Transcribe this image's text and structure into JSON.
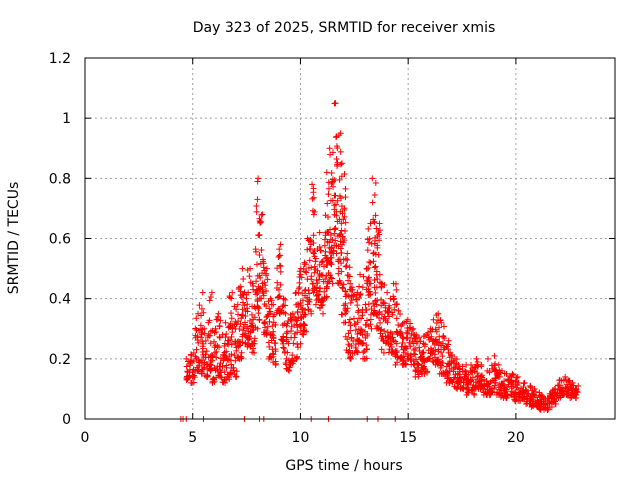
{
  "chart_data": {
    "type": "scatter",
    "title": "Day 323 of 2025, SRMTID for receiver xmis",
    "xlabel": "GPS time / hours",
    "ylabel": "SRMTID / TECUs",
    "xlim": [
      0,
      24.6
    ],
    "ylim": [
      0,
      1.2
    ],
    "xticks": [
      0,
      5,
      10,
      15,
      20
    ],
    "xtick_labels": [
      "0",
      "5",
      "10",
      "15",
      "20"
    ],
    "yticks": [
      0,
      0.2,
      0.4,
      0.6,
      0.8,
      1.0,
      1.2
    ],
    "ytick_labels": [
      "0",
      "0.2",
      "0.4",
      "0.6",
      "0.8",
      "1",
      "1.2"
    ],
    "grid": true,
    "marker": "+",
    "color": "#ff0000",
    "series": [
      {
        "name": "SRMTID",
        "x": [
          4.45,
          4.55,
          4.7,
          5.5,
          7.4,
          8.1,
          8.3,
          10.5,
          11.3,
          13.1,
          13.6,
          14.4
        ],
        "y": [
          0,
          0,
          0,
          0,
          0,
          0,
          0,
          0,
          0,
          0,
          0,
          0
        ],
        "envelope": [
          [
            4.8,
            0.13,
            0.2
          ],
          [
            5.0,
            0.12,
            0.22
          ],
          [
            5.2,
            0.16,
            0.35
          ],
          [
            5.4,
            0.15,
            0.42
          ],
          [
            5.6,
            0.14,
            0.3
          ],
          [
            5.8,
            0.16,
            0.42
          ],
          [
            6.0,
            0.12,
            0.3
          ],
          [
            6.2,
            0.14,
            0.35
          ],
          [
            6.4,
            0.12,
            0.28
          ],
          [
            6.6,
            0.13,
            0.32
          ],
          [
            6.8,
            0.15,
            0.42
          ],
          [
            7.0,
            0.14,
            0.38
          ],
          [
            7.2,
            0.2,
            0.44
          ],
          [
            7.4,
            0.25,
            0.5
          ],
          [
            7.6,
            0.24,
            0.5
          ],
          [
            7.8,
            0.22,
            0.45
          ],
          [
            8.0,
            0.3,
            0.8
          ],
          [
            8.2,
            0.4,
            0.68
          ],
          [
            8.4,
            0.28,
            0.5
          ],
          [
            8.6,
            0.2,
            0.4
          ],
          [
            8.8,
            0.18,
            0.38
          ],
          [
            9.0,
            0.35,
            0.58
          ],
          [
            9.2,
            0.22,
            0.4
          ],
          [
            9.4,
            0.16,
            0.35
          ],
          [
            9.6,
            0.18,
            0.35
          ],
          [
            9.8,
            0.2,
            0.42
          ],
          [
            10.0,
            0.25,
            0.5
          ],
          [
            10.2,
            0.28,
            0.52
          ],
          [
            10.4,
            0.35,
            0.6
          ],
          [
            10.6,
            0.42,
            0.78
          ],
          [
            10.8,
            0.38,
            0.62
          ],
          [
            11.0,
            0.35,
            0.56
          ],
          [
            11.2,
            0.4,
            0.82
          ],
          [
            11.4,
            0.45,
            0.9
          ],
          [
            11.6,
            0.55,
            1.05
          ],
          [
            11.8,
            0.45,
            0.95
          ],
          [
            12.0,
            0.32,
            0.85
          ],
          [
            12.2,
            0.22,
            0.55
          ],
          [
            12.4,
            0.2,
            0.45
          ],
          [
            12.6,
            0.22,
            0.42
          ],
          [
            12.8,
            0.25,
            0.48
          ],
          [
            13.0,
            0.2,
            0.5
          ],
          [
            13.2,
            0.3,
            0.65
          ],
          [
            13.4,
            0.35,
            0.8
          ],
          [
            13.6,
            0.3,
            0.65
          ],
          [
            13.8,
            0.22,
            0.45
          ],
          [
            14.0,
            0.25,
            0.42
          ],
          [
            14.2,
            0.22,
            0.4
          ],
          [
            14.4,
            0.18,
            0.45
          ],
          [
            14.6,
            0.2,
            0.36
          ],
          [
            14.8,
            0.18,
            0.32
          ],
          [
            15.0,
            0.2,
            0.33
          ],
          [
            15.2,
            0.18,
            0.3
          ],
          [
            15.4,
            0.14,
            0.28
          ],
          [
            15.6,
            0.15,
            0.27
          ],
          [
            15.8,
            0.15,
            0.28
          ],
          [
            16.0,
            0.2,
            0.3
          ],
          [
            16.2,
            0.18,
            0.33
          ],
          [
            16.4,
            0.15,
            0.35
          ],
          [
            16.6,
            0.15,
            0.32
          ],
          [
            16.8,
            0.12,
            0.26
          ],
          [
            17.0,
            0.12,
            0.22
          ],
          [
            17.2,
            0.1,
            0.2
          ],
          [
            17.4,
            0.1,
            0.18
          ],
          [
            17.6,
            0.1,
            0.18
          ],
          [
            17.8,
            0.08,
            0.16
          ],
          [
            18.0,
            0.08,
            0.18
          ],
          [
            18.2,
            0.1,
            0.2
          ],
          [
            18.4,
            0.1,
            0.18
          ],
          [
            18.6,
            0.08,
            0.16
          ],
          [
            18.8,
            0.08,
            0.2
          ],
          [
            19.0,
            0.1,
            0.21
          ],
          [
            19.2,
            0.08,
            0.18
          ],
          [
            19.4,
            0.07,
            0.16
          ],
          [
            19.6,
            0.07,
            0.15
          ],
          [
            19.8,
            0.08,
            0.15
          ],
          [
            20.0,
            0.06,
            0.14
          ],
          [
            20.2,
            0.06,
            0.12
          ],
          [
            20.4,
            0.05,
            0.12
          ],
          [
            20.6,
            0.05,
            0.11
          ],
          [
            20.8,
            0.04,
            0.1
          ],
          [
            21.0,
            0.04,
            0.09
          ],
          [
            21.2,
            0.03,
            0.08
          ],
          [
            21.4,
            0.03,
            0.07
          ],
          [
            21.6,
            0.04,
            0.09
          ],
          [
            21.8,
            0.05,
            0.1
          ],
          [
            22.0,
            0.07,
            0.13
          ],
          [
            22.2,
            0.08,
            0.14
          ],
          [
            22.4,
            0.08,
            0.13
          ],
          [
            22.6,
            0.07,
            0.12
          ],
          [
            22.8,
            0.07,
            0.11
          ]
        ]
      }
    ]
  }
}
